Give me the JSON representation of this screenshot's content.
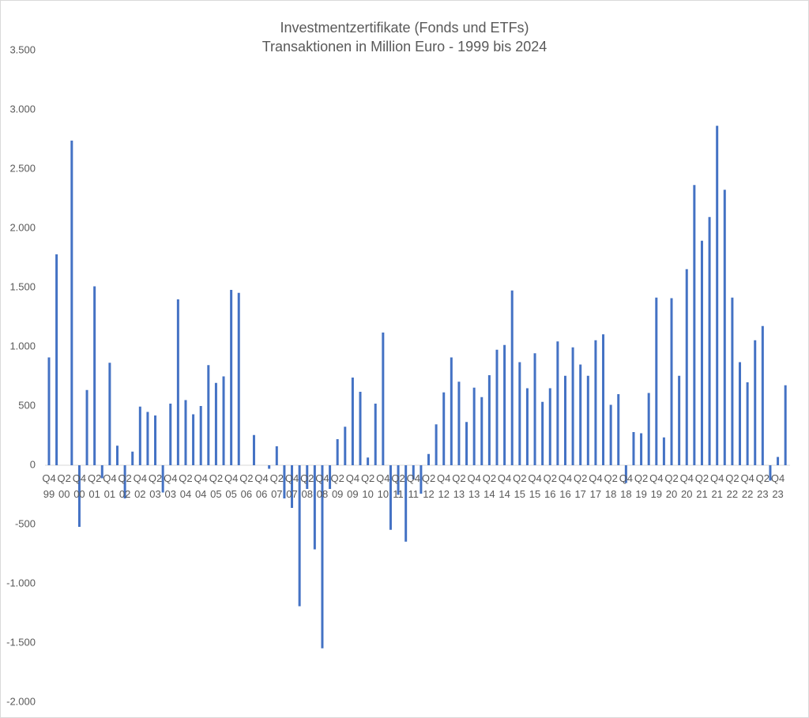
{
  "chart_data": {
    "type": "bar",
    "title": "Investmentzertifikate (Fonds und ETFs)",
    "subtitle": "Transaktionen in Million Euro - 1999 bis 2024",
    "color": "#4472c4",
    "grid": false,
    "ylim": [
      -2000,
      3500
    ],
    "yticks": [
      {
        "value": -2000,
        "label": "-2.000"
      },
      {
        "value": -1500,
        "label": "-1.500"
      },
      {
        "value": -1000,
        "label": "-1.000"
      },
      -500,
      0,
      500,
      {
        "value": 1000,
        "label": "1.000"
      },
      {
        "value": 1500,
        "label": "1.500"
      },
      {
        "value": 2000,
        "label": "2.000"
      },
      {
        "value": 2500,
        "label": "2.500"
      },
      {
        "value": 3000,
        "label": "3.000"
      },
      {
        "value": 3500,
        "label": "3.500"
      }
    ],
    "categories": [
      "Q4 99",
      null,
      "Q2 00",
      null,
      "Q4 00",
      null,
      "Q2 01",
      null,
      "Q4 01",
      null,
      "Q2 02",
      null,
      "Q4 02",
      null,
      "Q2 03",
      null,
      "Q4 03",
      null,
      "Q2 04",
      null,
      "Q4 04",
      null,
      "Q2 05",
      null,
      "Q4 05",
      null,
      "Q2 06",
      null,
      "Q4 06",
      null,
      "Q2 07",
      null,
      "Q4 07",
      null,
      "Q2 08",
      null,
      "Q4 08",
      null,
      "Q2 09",
      null,
      "Q4 09",
      null,
      "Q2 10",
      null,
      "Q4 10",
      null,
      "Q2 11",
      null,
      "Q4 11",
      null,
      "Q2 12",
      null,
      "Q4 12",
      null,
      "Q2 13",
      null,
      "Q4 13",
      null,
      "Q2 14",
      null,
      "Q4 14",
      null,
      "Q2 15",
      null,
      "Q4 15",
      null,
      "Q2 16",
      null,
      "Q4 16",
      null,
      "Q2 17",
      null,
      "Q4 17",
      null,
      "Q2 18",
      null,
      "Q4 18",
      null,
      "Q2 19",
      null,
      "Q4 19",
      null,
      "Q2 20",
      null,
      "Q4 20",
      null,
      "Q2 21",
      null,
      "Q4 21",
      null,
      "Q2 22",
      null,
      "Q4 22",
      null,
      "Q2 23",
      null,
      "Q4 23",
      null
    ],
    "values": [
      910,
      1780,
      0,
      2740,
      -520,
      635,
      1510,
      -110,
      865,
      165,
      -280,
      115,
      495,
      450,
      420,
      -230,
      520,
      1400,
      550,
      430,
      500,
      845,
      695,
      750,
      1480,
      1455,
      0,
      255,
      0,
      -30,
      160,
      -280,
      -360,
      -1190,
      -200,
      -710,
      -1545,
      -200,
      220,
      325,
      740,
      620,
      65,
      520,
      1120,
      -545,
      -250,
      -645,
      -120,
      -240,
      95,
      345,
      615,
      910,
      705,
      365,
      655,
      575,
      760,
      975,
      1015,
      1475,
      870,
      650,
      945,
      535,
      650,
      1045,
      755,
      995,
      850,
      755,
      1055,
      1105,
      510,
      600,
      -150,
      280,
      270,
      610,
      1415,
      235,
      1410,
      755,
      1655,
      2365,
      1895,
      2095,
      2865,
      2325,
      1415,
      870,
      700,
      1055,
      1175,
      -130,
      70,
      675
    ]
  }
}
